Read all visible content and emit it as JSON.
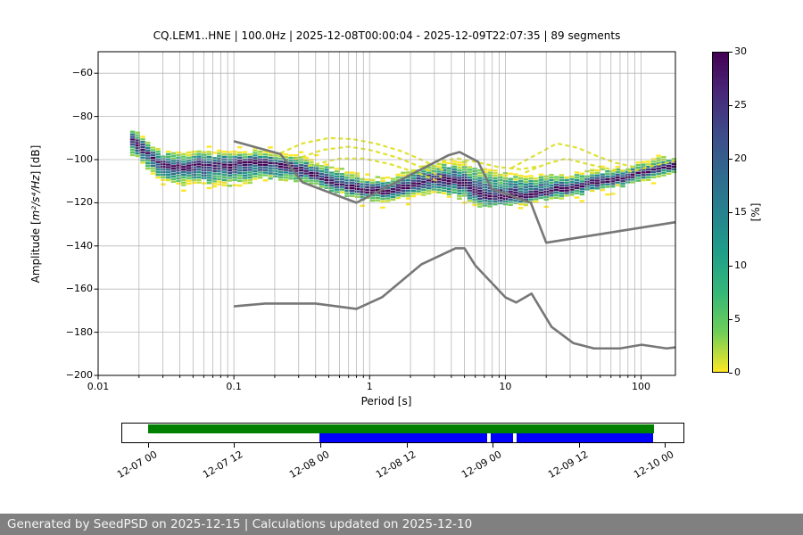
{
  "title": "CQ.LEM1..HNE | 100.0Hz | 2025-12-08T00:00:04 - 2025-12-09T22:07:35 | 89 segments",
  "footer": {
    "text": "Generated by SeedPSD on 2025-12-15 | Calculations updated on 2025-12-10",
    "bg_color": "#808080",
    "text_color": "#f5f5f5"
  },
  "chart_data": {
    "type": "heatmap",
    "subtype": "ppsd-probabilistic-power-spectral-density",
    "title": "CQ.LEM1..HNE | 100.0Hz | 2025-12-08T00:00:04 - 2025-12-09T22:07:35 | 89 segments",
    "xlabel": "Period [s]",
    "ylabel": "Amplitude [m²/s⁴/Hz] [dB]",
    "ylabel_parts": {
      "prefix": "Amplitude [",
      "math": "m²/s⁴/Hz",
      "suffix": "] [dB]"
    },
    "xscale": "log",
    "xlim": [
      0.01,
      179
    ],
    "ylim": [
      -200,
      -50
    ],
    "xticks": {
      "values": [
        0.01,
        0.1,
        1,
        10,
        100
      ],
      "labels": [
        "0.01",
        "0.1",
        "1",
        "10",
        "100"
      ]
    },
    "yticks": {
      "values": [
        -60,
        -80,
        -100,
        -120,
        -140,
        -160,
        -180,
        -200
      ],
      "labels": [
        "−60",
        "−80",
        "−100",
        "−120",
        "−140",
        "−160",
        "−180",
        "−200"
      ]
    },
    "grid": true,
    "grid_color": "#b0b0b0",
    "colorbar": {
      "label": "[%]",
      "min": 0,
      "max": 30,
      "ticks": [
        0,
        5,
        10,
        15,
        20,
        25,
        30
      ],
      "tick_labels": [
        "0",
        "5",
        "10",
        "15",
        "20",
        "25",
        "30"
      ],
      "colormap": "viridis_r",
      "orientation": "vertical"
    },
    "noise_models": {
      "color": "#777777",
      "nhnm": [
        [
          0.1,
          -91.5
        ],
        [
          0.22,
          -97.4
        ],
        [
          0.32,
          -110.5
        ],
        [
          0.8,
          -120.0
        ],
        [
          3.8,
          -98.0
        ],
        [
          4.6,
          -96.5
        ],
        [
          6.3,
          -101.0
        ],
        [
          7.9,
          -113.5
        ],
        [
          15.4,
          -120.0
        ],
        [
          20.0,
          -138.5
        ],
        [
          179.0,
          -129.0
        ]
      ],
      "nlnm": [
        [
          0.1,
          -168.0
        ],
        [
          0.17,
          -166.7
        ],
        [
          0.4,
          -166.7
        ],
        [
          0.8,
          -169.2
        ],
        [
          1.24,
          -163.7
        ],
        [
          2.4,
          -148.6
        ],
        [
          4.3,
          -141.1
        ],
        [
          5.0,
          -141.1
        ],
        [
          6.0,
          -149.0
        ],
        [
          10.0,
          -163.8
        ],
        [
          12.0,
          -166.2
        ],
        [
          15.6,
          -162.1
        ],
        [
          21.9,
          -177.5
        ],
        [
          31.6,
          -185.0
        ],
        [
          45.0,
          -187.5
        ],
        [
          70.0,
          -187.5
        ],
        [
          101.0,
          -185.8
        ],
        [
          154.0,
          -187.5
        ],
        [
          179.0,
          -187.0
        ]
      ]
    },
    "ppsd_band": {
      "columns": [
        "period_s",
        "mode_db",
        "top_db",
        "bottom_db"
      ],
      "period_bin_octave_fraction": 8,
      "db_bin": 1.2,
      "start_period": 0.0172,
      "points": [
        [
          0.0172,
          -91,
          -86.5,
          -99
        ],
        [
          0.021,
          -96,
          -90,
          -103
        ],
        [
          0.028,
          -103,
          -97,
          -111
        ],
        [
          0.04,
          -103.5,
          -97.5,
          -112
        ],
        [
          0.06,
          -103,
          -97,
          -112.5
        ],
        [
          0.09,
          -102.5,
          -96.5,
          -112.5
        ],
        [
          0.13,
          -101.5,
          -96.5,
          -111
        ],
        [
          0.2,
          -102.5,
          -97.5,
          -110
        ],
        [
          0.3,
          -105.5,
          -99.5,
          -111.5
        ],
        [
          0.45,
          -109.5,
          -102.5,
          -114.5
        ],
        [
          0.65,
          -113,
          -106,
          -117.5
        ],
        [
          1.0,
          -115.5,
          -109,
          -120
        ],
        [
          1.5,
          -114.5,
          -108,
          -119.5
        ],
        [
          2.2,
          -111.5,
          -104.5,
          -117.5
        ],
        [
          3.2,
          -109.5,
          -102,
          -116.5
        ],
        [
          4.5,
          -111,
          -101.5,
          -119
        ],
        [
          6.5,
          -116.5,
          -104,
          -122.5
        ],
        [
          9.0,
          -118.5,
          -107,
          -122.5
        ],
        [
          13,
          -117.5,
          -108,
          -121.5
        ],
        [
          20,
          -115.5,
          -108,
          -119.5
        ],
        [
          30,
          -113.5,
          -107,
          -117.5
        ],
        [
          45,
          -111.5,
          -105.5,
          -115.5
        ],
        [
          70,
          -109,
          -104,
          -113
        ],
        [
          100,
          -106.5,
          -101.5,
          -110.5
        ],
        [
          140,
          -104.5,
          -100,
          -108.5
        ],
        [
          179,
          -102.5,
          -98.5,
          -106.5
        ]
      ]
    },
    "outlier_traces": {
      "color": "#dde025",
      "traces": [
        [
          [
            0.22,
            -97
          ],
          [
            0.32,
            -92.5
          ],
          [
            0.5,
            -90
          ],
          [
            0.75,
            -90.5
          ],
          [
            1.1,
            -92.5
          ],
          [
            1.7,
            -96
          ],
          [
            2.5,
            -100.5
          ],
          [
            3.5,
            -105
          ]
        ],
        [
          [
            0.28,
            -100
          ],
          [
            0.45,
            -95.5
          ],
          [
            0.7,
            -94
          ],
          [
            1.0,
            -95.5
          ],
          [
            1.6,
            -99
          ],
          [
            2.4,
            -103.5
          ],
          [
            3.4,
            -108
          ]
        ],
        [
          [
            0.35,
            -103
          ],
          [
            0.6,
            -99.5
          ],
          [
            0.9,
            -99.5
          ],
          [
            1.4,
            -102
          ],
          [
            2.2,
            -106
          ],
          [
            3.2,
            -110
          ]
        ],
        [
          [
            3.0,
            -101
          ],
          [
            4.5,
            -99.5
          ],
          [
            6.5,
            -101.5
          ],
          [
            9,
            -103.5
          ],
          [
            13,
            -104.5
          ],
          [
            18,
            -103
          ]
        ],
        [
          [
            11,
            -104
          ],
          [
            16,
            -98.5
          ],
          [
            24,
            -92.5
          ],
          [
            34,
            -94.5
          ],
          [
            48,
            -98.5
          ],
          [
            65,
            -101.5
          ],
          [
            90,
            -103.5
          ]
        ],
        [
          [
            14,
            -106
          ],
          [
            20,
            -102
          ],
          [
            28,
            -99.5
          ],
          [
            40,
            -102
          ],
          [
            60,
            -104.5
          ],
          [
            85,
            -105.5
          ],
          [
            120,
            -103
          ],
          [
            179,
            -100.5
          ]
        ]
      ]
    },
    "timeline": {
      "axis_hours_relative_to": "2025-12-07 00:00",
      "axis_range_h": [
        -3.6,
        74.6
      ],
      "tick_hours": [
        0,
        12,
        24,
        36,
        48,
        60,
        72
      ],
      "tick_labels": [
        "12-07 00",
        "12-07 12",
        "12-08 00",
        "12-08 12",
        "12-09 00",
        "12-09 12",
        "12-10 00"
      ],
      "segments": [
        {
          "name": "data-availability",
          "color": "#008000",
          "row": 0,
          "start_h": 0.0,
          "end_h": 70.5
        },
        {
          "name": "psd-calculated",
          "color": "#0000ff",
          "row": 1,
          "start_h": 23.9,
          "end_h": 70.4
        }
      ],
      "gaps": [
        {
          "segment": "psd-calculated",
          "start_h": 47.2,
          "end_h": 47.8
        },
        {
          "segment": "psd-calculated",
          "start_h": 50.9,
          "end_h": 51.3
        }
      ]
    }
  }
}
